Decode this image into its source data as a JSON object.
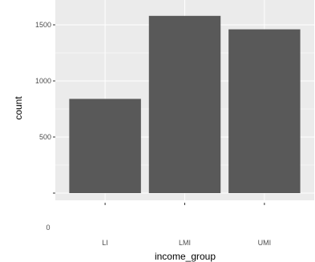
{
  "chart_data": {
    "type": "bar",
    "categories": [
      "LI",
      "LMI",
      "UMI"
    ],
    "values": [
      840,
      1580,
      1460
    ],
    "xlabel": "income_group",
    "ylabel": "count",
    "ylim": [
      0,
      1600
    ],
    "yticks": [
      500,
      1000,
      1500
    ],
    "y_zero_label": "0",
    "grid": true,
    "bar_color": "#595959",
    "panel_color": "#ebebeb",
    "grid_color": "#ffffff"
  }
}
